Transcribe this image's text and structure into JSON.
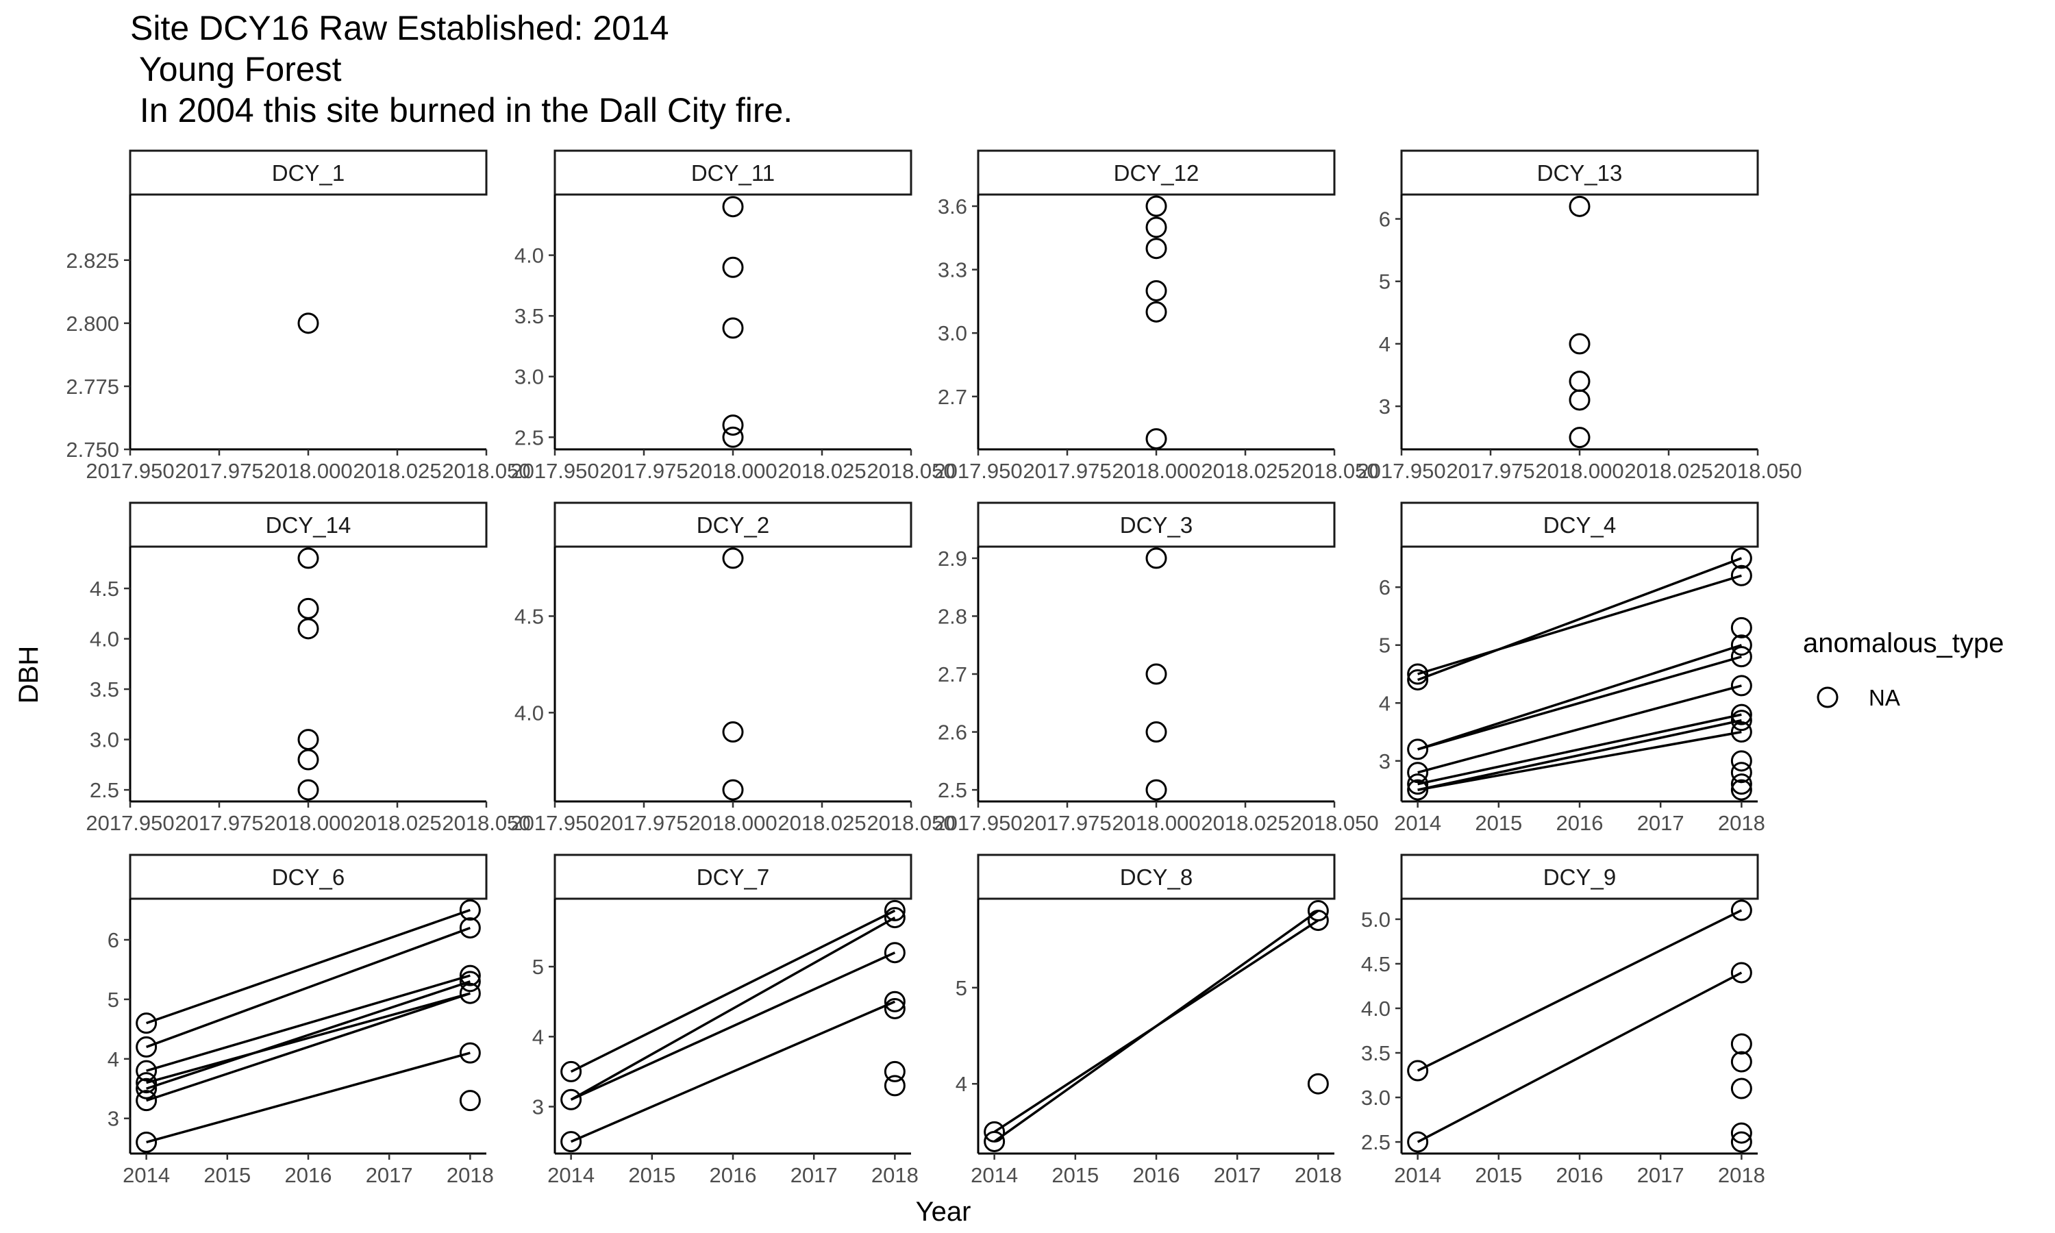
{
  "title_lines": [
    "Site DCY16 Raw Established: 2014",
    " Young Forest",
    " In 2004 this site burned in the Dall City fire."
  ],
  "chart_data": {
    "type": "scatter",
    "xlabel": "Year",
    "ylabel": "DBH",
    "legend": {
      "title": "anomalous_type",
      "entries": [
        "NA"
      ],
      "placement": "right"
    },
    "grid": false,
    "panels": [
      {
        "name": "DCY_1",
        "xticks": [
          2017.95,
          2017.975,
          2018.0,
          2018.025,
          2018.05
        ],
        "xtick_labels": [
          "2017.950",
          "2017.975",
          "2018.000",
          "2018.025",
          "2018.050"
        ],
        "xlim": [
          2017.95,
          2018.05
        ],
        "yticks": [
          2.75,
          2.775,
          2.8,
          2.825
        ],
        "ytick_labels": [
          "2.750",
          "2.775",
          "2.800",
          "2.825"
        ],
        "ylim": [
          2.75,
          2.851
        ],
        "points": [
          [
            2018,
            2.8
          ]
        ],
        "lines": []
      },
      {
        "name": "DCY_11",
        "xticks": [
          2017.95,
          2017.975,
          2018.0,
          2018.025,
          2018.05
        ],
        "xtick_labels": [
          "2017.950",
          "2017.975",
          "2018.000",
          "2018.025",
          "2018.050"
        ],
        "xlim": [
          2017.95,
          2018.05
        ],
        "yticks": [
          2.5,
          3.0,
          3.5,
          4.0
        ],
        "ytick_labels": [
          "2.5",
          "3.0",
          "3.5",
          "4.0"
        ],
        "ylim": [
          2.4,
          4.5
        ],
        "points": [
          [
            2018,
            4.4
          ],
          [
            2018,
            3.9
          ],
          [
            2018,
            3.4
          ],
          [
            2018,
            2.6
          ],
          [
            2018,
            2.5
          ]
        ],
        "lines": []
      },
      {
        "name": "DCY_12",
        "xticks": [
          2017.95,
          2017.975,
          2018.0,
          2018.025,
          2018.05
        ],
        "xtick_labels": [
          "2017.950",
          "2017.975",
          "2018.000",
          "2018.025",
          "2018.050"
        ],
        "xlim": [
          2017.95,
          2018.05
        ],
        "yticks": [
          2.7,
          3.0,
          3.3,
          3.6
        ],
        "ytick_labels": [
          "2.7",
          "3.0",
          "3.3",
          "3.6"
        ],
        "ylim": [
          2.45,
          3.655
        ],
        "points": [
          [
            2018,
            3.6
          ],
          [
            2018,
            3.5
          ],
          [
            2018,
            3.4
          ],
          [
            2018,
            3.2
          ],
          [
            2018,
            3.1
          ],
          [
            2018,
            2.5
          ]
        ],
        "lines": []
      },
      {
        "name": "DCY_13",
        "xticks": [
          2017.95,
          2017.975,
          2018.0,
          2018.025,
          2018.05
        ],
        "xtick_labels": [
          "2017.950",
          "2017.975",
          "2018.000",
          "2018.025",
          "2018.050"
        ],
        "xlim": [
          2017.95,
          2018.05
        ],
        "yticks": [
          3,
          4,
          5,
          6
        ],
        "ytick_labels": [
          "3",
          "4",
          "5",
          "6"
        ],
        "ylim": [
          2.31,
          6.39
        ],
        "points": [
          [
            2018,
            6.2
          ],
          [
            2018,
            4.0
          ],
          [
            2018,
            3.4
          ],
          [
            2018,
            3.1
          ],
          [
            2018,
            2.5
          ]
        ],
        "lines": []
      },
      {
        "name": "DCY_14",
        "xticks": [
          2017.95,
          2017.975,
          2018.0,
          2018.025,
          2018.05
        ],
        "xtick_labels": [
          "2017.950",
          "2017.975",
          "2018.000",
          "2018.025",
          "2018.050"
        ],
        "xlim": [
          2017.95,
          2018.05
        ],
        "yticks": [
          2.5,
          3.0,
          3.5,
          4.0,
          4.5
        ],
        "ytick_labels": [
          "2.5",
          "3.0",
          "3.5",
          "4.0",
          "4.5"
        ],
        "ylim": [
          2.385,
          4.915
        ],
        "points": [
          [
            2018,
            4.8
          ],
          [
            2018,
            4.3
          ],
          [
            2018,
            4.1
          ],
          [
            2018,
            3.0
          ],
          [
            2018,
            2.8
          ],
          [
            2018,
            2.5
          ]
        ],
        "lines": []
      },
      {
        "name": "DCY_2",
        "xticks": [
          2017.95,
          2017.975,
          2018.0,
          2018.025,
          2018.05
        ],
        "xtick_labels": [
          "2017.950",
          "2017.975",
          "2018.000",
          "2018.025",
          "2018.050"
        ],
        "xlim": [
          2017.95,
          2018.05
        ],
        "yticks": [
          4.0,
          4.5
        ],
        "ytick_labels": [
          "4.0",
          "4.5"
        ],
        "ylim": [
          3.54,
          4.86
        ],
        "points": [
          [
            2018,
            4.8
          ],
          [
            2018,
            3.9
          ],
          [
            2018,
            3.6
          ]
        ],
        "lines": []
      },
      {
        "name": "DCY_3",
        "xticks": [
          2017.95,
          2017.975,
          2018.0,
          2018.025,
          2018.05
        ],
        "xtick_labels": [
          "2017.950",
          "2017.975",
          "2018.000",
          "2018.025",
          "2018.050"
        ],
        "xlim": [
          2017.95,
          2018.05
        ],
        "yticks": [
          2.5,
          2.6,
          2.7,
          2.8,
          2.9
        ],
        "ytick_labels": [
          "2.5",
          "2.6",
          "2.7",
          "2.8",
          "2.9"
        ],
        "ylim": [
          2.48,
          2.92
        ],
        "points": [
          [
            2018,
            2.9
          ],
          [
            2018,
            2.7
          ],
          [
            2018,
            2.6
          ],
          [
            2018,
            2.5
          ]
        ],
        "lines": []
      },
      {
        "name": "DCY_4",
        "xticks": [
          2014,
          2015,
          2016,
          2017,
          2018
        ],
        "xtick_labels": [
          "2014",
          "2015",
          "2016",
          "2017",
          "2018"
        ],
        "xlim": [
          2013.8,
          2018.2
        ],
        "yticks": [
          3,
          4,
          5,
          6
        ],
        "ytick_labels": [
          "3",
          "4",
          "5",
          "6"
        ],
        "ylim": [
          2.3,
          6.7
        ],
        "points": [
          [
            2014,
            4.5
          ],
          [
            2014,
            4.4
          ],
          [
            2014,
            3.2
          ],
          [
            2014,
            2.8
          ],
          [
            2014,
            2.6
          ],
          [
            2014,
            2.5
          ],
          [
            2018,
            6.5
          ],
          [
            2018,
            6.2
          ],
          [
            2018,
            5.3
          ],
          [
            2018,
            5.0
          ],
          [
            2018,
            4.8
          ],
          [
            2018,
            4.3
          ],
          [
            2018,
            3.8
          ],
          [
            2018,
            3.7
          ],
          [
            2018,
            3.5
          ],
          [
            2018,
            3.0
          ],
          [
            2018,
            2.8
          ],
          [
            2018,
            2.6
          ],
          [
            2018,
            2.5
          ]
        ],
        "lines": [
          [
            [
              2014,
              4.5
            ],
            [
              2018,
              6.2
            ]
          ],
          [
            [
              2014,
              4.4
            ],
            [
              2018,
              6.5
            ]
          ],
          [
            [
              2014,
              3.2
            ],
            [
              2018,
              5.0
            ]
          ],
          [
            [
              2014,
              3.2
            ],
            [
              2018,
              4.8
            ]
          ],
          [
            [
              2014,
              2.8
            ],
            [
              2018,
              4.3
            ]
          ],
          [
            [
              2014,
              2.6
            ],
            [
              2018,
              3.8
            ]
          ],
          [
            [
              2014,
              2.5
            ],
            [
              2018,
              3.7
            ]
          ],
          [
            [
              2014,
              2.5
            ],
            [
              2018,
              3.5
            ]
          ]
        ]
      },
      {
        "name": "DCY_6",
        "xticks": [
          2014,
          2015,
          2016,
          2017,
          2018
        ],
        "xtick_labels": [
          "2014",
          "2015",
          "2016",
          "2017",
          "2018"
        ],
        "xlim": [
          2013.8,
          2018.2
        ],
        "yticks": [
          3,
          4,
          5,
          6
        ],
        "ytick_labels": [
          "3",
          "4",
          "5",
          "6"
        ],
        "ylim": [
          2.41,
          6.69
        ],
        "points": [
          [
            2014,
            4.6
          ],
          [
            2014,
            4.2
          ],
          [
            2014,
            3.8
          ],
          [
            2014,
            3.6
          ],
          [
            2014,
            3.5
          ],
          [
            2014,
            3.3
          ],
          [
            2014,
            2.6
          ],
          [
            2018,
            6.5
          ],
          [
            2018,
            6.2
          ],
          [
            2018,
            5.4
          ],
          [
            2018,
            5.3
          ],
          [
            2018,
            5.1
          ],
          [
            2018,
            4.1
          ],
          [
            2018,
            3.3
          ]
        ],
        "lines": [
          [
            [
              2014,
              4.6
            ],
            [
              2018,
              6.5
            ]
          ],
          [
            [
              2014,
              4.2
            ],
            [
              2018,
              6.2
            ]
          ],
          [
            [
              2014,
              3.8
            ],
            [
              2018,
              5.4
            ]
          ],
          [
            [
              2014,
              3.6
            ],
            [
              2018,
              5.1
            ]
          ],
          [
            [
              2014,
              3.5
            ],
            [
              2018,
              5.3
            ]
          ],
          [
            [
              2014,
              3.3
            ],
            [
              2018,
              5.1
            ]
          ],
          [
            [
              2014,
              2.6
            ],
            [
              2018,
              4.1
            ]
          ]
        ]
      },
      {
        "name": "DCY_7",
        "xticks": [
          2014,
          2015,
          2016,
          2017,
          2018
        ],
        "xtick_labels": [
          "2014",
          "2015",
          "2016",
          "2017",
          "2018"
        ],
        "xlim": [
          2013.8,
          2018.2
        ],
        "yticks": [
          3,
          4,
          5
        ],
        "ytick_labels": [
          "3",
          "4",
          "5"
        ],
        "ylim": [
          2.33,
          5.97
        ],
        "points": [
          [
            2014,
            3.5
          ],
          [
            2014,
            3.1
          ],
          [
            2014,
            2.5
          ],
          [
            2018,
            5.8
          ],
          [
            2018,
            5.7
          ],
          [
            2018,
            5.2
          ],
          [
            2018,
            4.5
          ],
          [
            2018,
            4.4
          ],
          [
            2018,
            3.5
          ],
          [
            2018,
            3.3
          ]
        ],
        "lines": [
          [
            [
              2014,
              3.5
            ],
            [
              2018,
              5.8
            ]
          ],
          [
            [
              2014,
              3.1
            ],
            [
              2018,
              5.7
            ]
          ],
          [
            [
              2014,
              3.1
            ],
            [
              2018,
              5.2
            ]
          ],
          [
            [
              2014,
              2.5
            ],
            [
              2018,
              4.5
            ]
          ]
        ]
      },
      {
        "name": "DCY_8",
        "xticks": [
          2014,
          2015,
          2016,
          2017,
          2018
        ],
        "xtick_labels": [
          "2014",
          "2015",
          "2016",
          "2017",
          "2018"
        ],
        "xlim": [
          2013.8,
          2018.2
        ],
        "yticks": [
          4,
          5
        ],
        "ytick_labels": [
          "4",
          "5"
        ],
        "ylim": [
          3.275,
          5.925
        ],
        "points": [
          [
            2014,
            3.5
          ],
          [
            2014,
            3.4
          ],
          [
            2018,
            5.8
          ],
          [
            2018,
            5.7
          ],
          [
            2018,
            4.0
          ]
        ],
        "lines": [
          [
            [
              2014,
              3.5
            ],
            [
              2018,
              5.7
            ]
          ],
          [
            [
              2014,
              3.4
            ],
            [
              2018,
              5.8
            ]
          ]
        ]
      },
      {
        "name": "DCY_9",
        "xticks": [
          2014,
          2015,
          2016,
          2017,
          2018
        ],
        "xtick_labels": [
          "2014",
          "2015",
          "2016",
          "2017",
          "2018"
        ],
        "xlim": [
          2013.8,
          2018.2
        ],
        "yticks": [
          2.5,
          3.0,
          3.5,
          4.0,
          4.5,
          5.0
        ],
        "ytick_labels": [
          "2.5",
          "3.0",
          "3.5",
          "4.0",
          "4.5",
          "5.0"
        ],
        "ylim": [
          2.37,
          5.23
        ],
        "points": [
          [
            2014,
            3.3
          ],
          [
            2014,
            2.5
          ],
          [
            2018,
            5.1
          ],
          [
            2018,
            4.4
          ],
          [
            2018,
            3.6
          ],
          [
            2018,
            3.4
          ],
          [
            2018,
            3.1
          ],
          [
            2018,
            2.6
          ],
          [
            2018,
            2.5
          ]
        ],
        "lines": [
          [
            [
              2014,
              3.3
            ],
            [
              2018,
              5.1
            ]
          ],
          [
            [
              2014,
              2.5
            ],
            [
              2018,
              4.4
            ]
          ]
        ]
      }
    ]
  }
}
